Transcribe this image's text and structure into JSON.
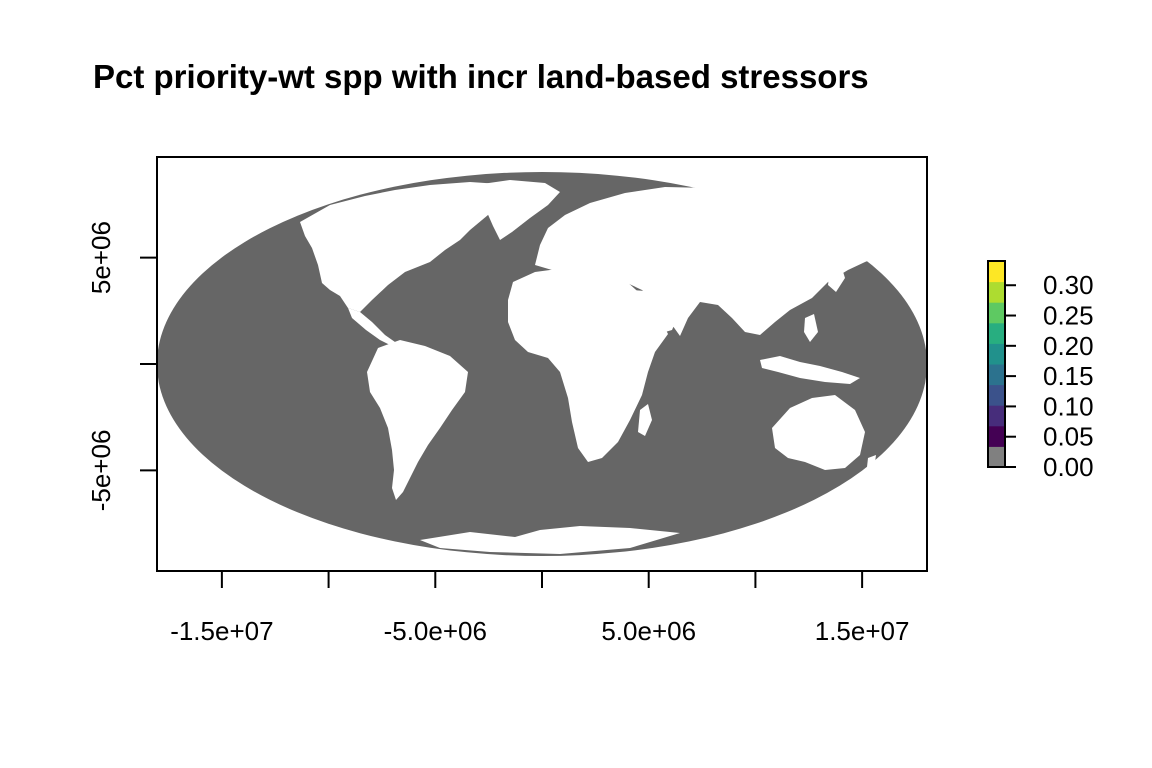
{
  "title": "Pct priority-wt spp with incr land-based stressors",
  "map": {
    "projection": "Mollweide (world)",
    "ocean_color": "#666666",
    "land_color": "#ffffff",
    "xlim": [
      -18040095,
      18040095
    ],
    "ylim": [
      -9020048,
      9020048
    ],
    "x_ticks": [
      -15000000,
      -10000000,
      -5000000,
      0,
      5000000,
      10000000,
      15000000
    ],
    "x_tick_labels": [
      {
        "value": -15000000,
        "label": "-1.5e+07"
      },
      {
        "value": -5000000,
        "label": "-5.0e+06"
      },
      {
        "value": 5000000,
        "label": "5.0e+06"
      },
      {
        "value": 15000000,
        "label": "1.5e+07"
      }
    ],
    "y_ticks": [
      -5000000,
      0,
      5000000
    ],
    "y_tick_labels": [
      {
        "value": 5000000,
        "label": "5e+06"
      },
      {
        "value": -5000000,
        "label": "-5e+06"
      }
    ]
  },
  "legend": {
    "min": 0.0,
    "max": 0.34,
    "colors": [
      "#808080",
      "#440154",
      "#472d7b",
      "#3b528b",
      "#2c728e",
      "#21918c",
      "#28ae80",
      "#5ec962",
      "#addc30",
      "#fde725"
    ],
    "ticks": [
      {
        "value": 0.0,
        "label": "0.00"
      },
      {
        "value": 0.05,
        "label": "0.05"
      },
      {
        "value": 0.1,
        "label": "0.10"
      },
      {
        "value": 0.15,
        "label": "0.15"
      },
      {
        "value": 0.2,
        "label": "0.20"
      },
      {
        "value": 0.25,
        "label": "0.25"
      },
      {
        "value": 0.3,
        "label": "0.30"
      }
    ]
  }
}
